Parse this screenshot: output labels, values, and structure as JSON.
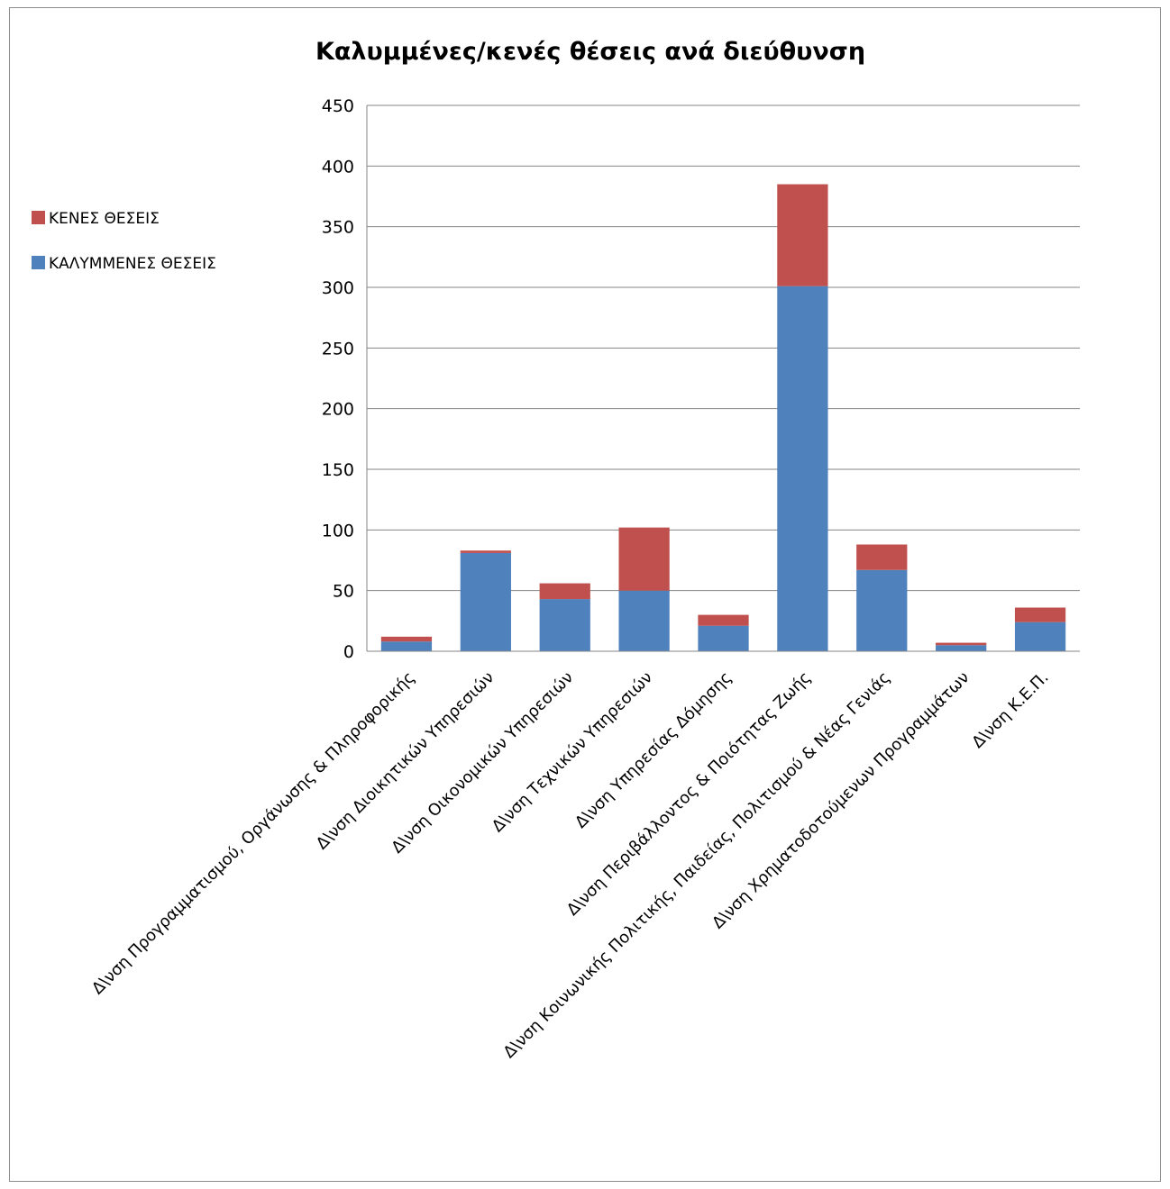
{
  "chart_data": {
    "type": "bar",
    "stacked": true,
    "title": "Καλυμμένες/κενές θέσεις ανά διεύθυνση",
    "xlabel": "",
    "ylabel": "",
    "ylim": [
      0,
      450
    ],
    "yticks": [
      0,
      50,
      100,
      150,
      200,
      250,
      300,
      350,
      400,
      450
    ],
    "grid": true,
    "legend_position": "left",
    "categories": [
      "Δ\\νση Προγραμματισμού, Οργάνωσης & Πληροφορικής",
      "Δ\\νση Διοικητικών Υπηρεσιών",
      "Δ\\νση Οικονομικών Υπηρεσιών",
      "Δ\\νση Τεχνικών Υπηρεσιών",
      "Δ\\νση Υπηρεσίας Δόμησης",
      "Δ\\νση Περιβάλλοντος & Ποιότητας Ζωής",
      "Δ\\νση Κοινωνικής Πολιτικής, Παιδείας, Πολιτισμού & Νέας Γενιάς",
      "Δ\\νση Χρηματοδοτούμενων Προγραμμάτων",
      "Δ\\νση Κ.Ε.Π."
    ],
    "series": [
      {
        "name": "ΚΑΛΥΜΜΕΝΕΣ ΘΕΣΕΙΣ",
        "color": "#4f81bd",
        "values": [
          8,
          81,
          43,
          50,
          21,
          301,
          67,
          5,
          24
        ]
      },
      {
        "name": "ΚΕΝΕΣ ΘΕΣΕΙΣ",
        "color": "#c0504d",
        "values": [
          4,
          2,
          13,
          52,
          9,
          84,
          21,
          2,
          12
        ]
      }
    ],
    "legend_order": [
      "ΚΕΝΕΣ ΘΕΣΕΙΣ",
      "ΚΑΛΥΜΜΕΝΕΣ ΘΕΣΕΙΣ"
    ]
  }
}
